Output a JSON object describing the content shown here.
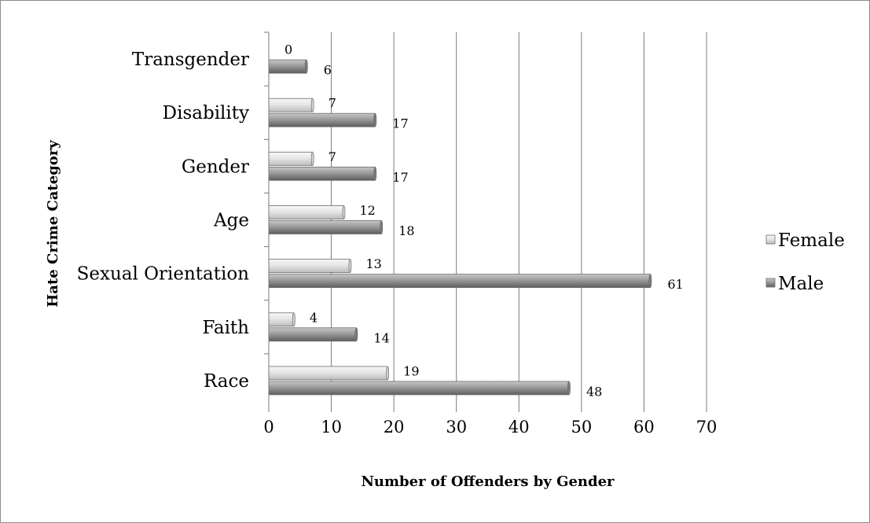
{
  "chart_data": {
    "type": "bar",
    "orientation": "horizontal",
    "categories": [
      "Transgender",
      "Disability",
      "Gender",
      "Age",
      "Sexual Orientation",
      "Faith",
      "Race"
    ],
    "series": [
      {
        "name": "Female",
        "values": [
          0,
          7,
          7,
          12,
          13,
          4,
          19
        ],
        "color": "#e4e4e4"
      },
      {
        "name": "Male",
        "values": [
          6,
          17,
          17,
          18,
          61,
          14,
          48
        ],
        "color": "#8a8a8a"
      }
    ],
    "xlabel": "Number of Offenders by Gender",
    "ylabel": "Hate Crime Category",
    "xlim": [
      0,
      70
    ],
    "xticks": [
      0,
      10,
      20,
      30,
      40,
      50,
      60,
      70
    ],
    "grid": "vertical",
    "legend": "right"
  }
}
